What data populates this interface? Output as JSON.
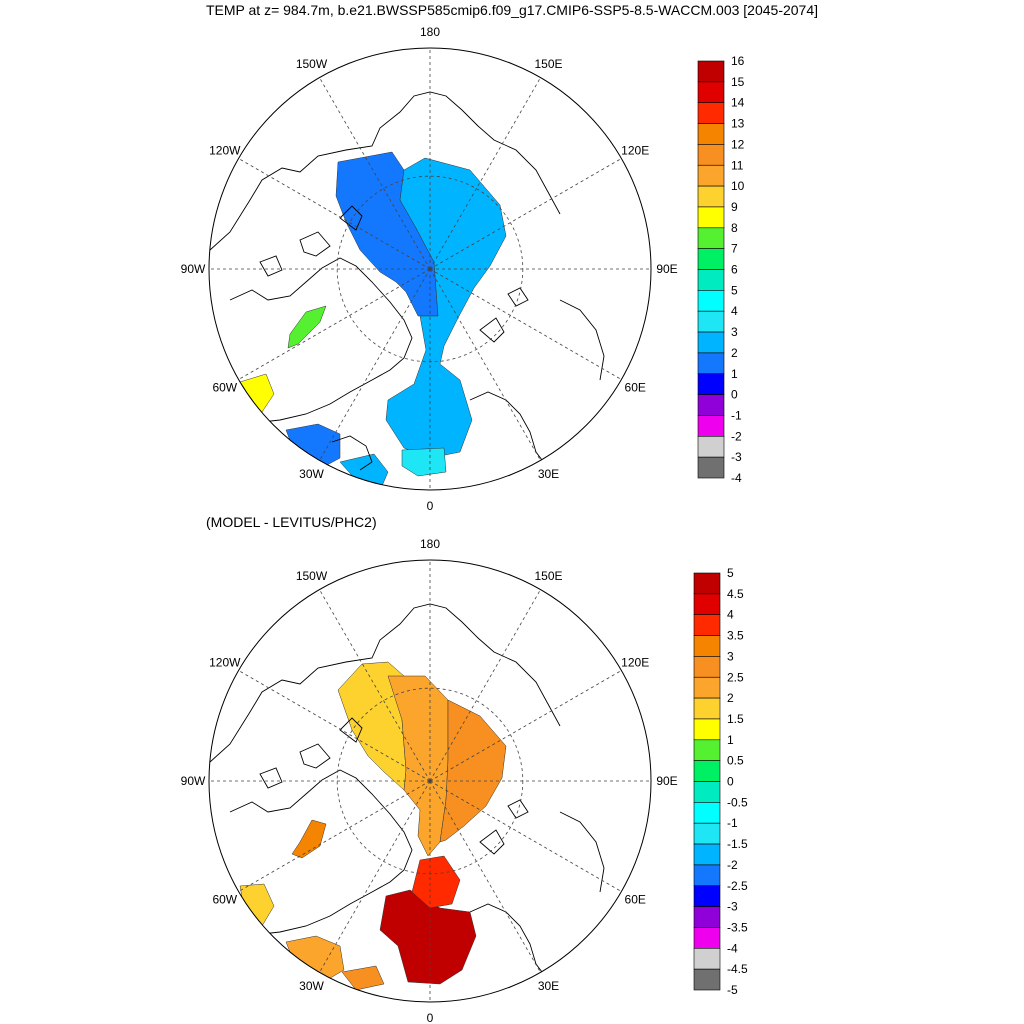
{
  "title": "TEMP at z= 984.7m, b.e21.BWSSP585cmip6.f09_g17.CMIP6-SSP5-8.5-WACCM.003 [2045-2074]",
  "bottom_subtitle": "(MODEL - LEVITUS/PHC2)",
  "longitude_labels": [
    "180",
    "150E",
    "120E",
    "90E",
    "60E",
    "30E",
    "0",
    "30W",
    "60W",
    "90W",
    "120W",
    "150W"
  ],
  "colors": {
    "land_outline": "#000000",
    "graticule": "#444444"
  },
  "top_colorbar": {
    "labels": [
      "16",
      "15",
      "14",
      "13",
      "12",
      "11",
      "10",
      "9",
      "8",
      "7",
      "6",
      "5",
      "4",
      "3",
      "2",
      "1",
      "0",
      "-1",
      "-2",
      "-3",
      "-4"
    ],
    "colors": [
      "#c00000",
      "#e00000",
      "#ff2a00",
      "#f58400",
      "#f79020",
      "#fca52c",
      "#fdd22e",
      "#ffff00",
      "#55f030",
      "#00f064",
      "#00ecc0",
      "#00ffff",
      "#1ee6f5",
      "#00b4ff",
      "#1478ff",
      "#0000ff",
      "#9000d8",
      "#ee00ee",
      "#d0d0d0",
      "#707070"
    ]
  },
  "bottom_colorbar": {
    "labels": [
      "5",
      "4.5",
      "4",
      "3.5",
      "3",
      "2.5",
      "2",
      "1.5",
      "1",
      "0.5",
      "0",
      "-0.5",
      "-1",
      "-1.5",
      "-2",
      "-2.5",
      "-3",
      "-3.5",
      "-4",
      "-4.5",
      "-5"
    ],
    "colors": [
      "#c00000",
      "#e00000",
      "#ff2a00",
      "#f58400",
      "#f79020",
      "#fca52c",
      "#fdd22e",
      "#ffff00",
      "#55f030",
      "#00f064",
      "#00ecc0",
      "#00ffff",
      "#1ee6f5",
      "#00b4ff",
      "#1478ff",
      "#0000ff",
      "#9000d8",
      "#ee00ee",
      "#d0d0d0",
      "#707070"
    ]
  },
  "top_map_fields": [
    "#1478ff",
    "#00b4ff",
    "#1ee6f5",
    "#55f030",
    "#ffff00"
  ],
  "bottom_map_fields": [
    "#fdd22e",
    "#fca52c",
    "#f79020",
    "#c00000",
    "#ff2a00",
    "#f58400"
  ]
}
